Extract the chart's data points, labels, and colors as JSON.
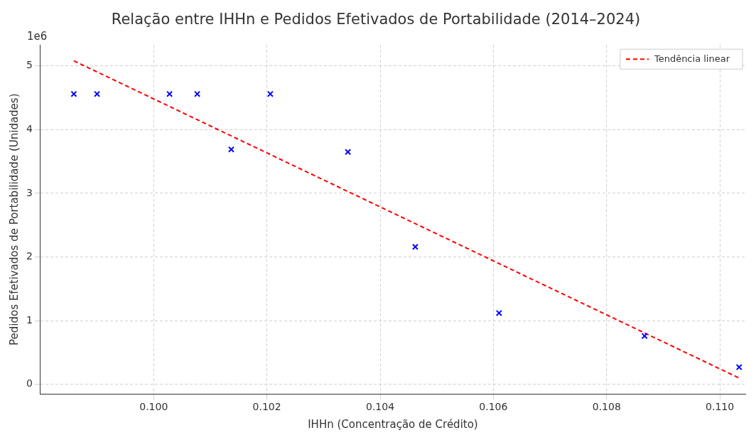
{
  "chart_data": {
    "type": "scatter",
    "title": "Relação entre IHHn e Pedidos Efetivados de Portabilidade (2014–2024)",
    "xlabel": "IHHn (Concentração de Crédito)",
    "ylabel": "Pedidos Efetivados de Portabilidade (Unidades)",
    "annotations": [
      "1e6"
    ],
    "series": [
      {
        "color": "#0000ff",
        "marker": "cross",
        "x": [
          0.09859,
          0.099,
          0.10028,
          0.10077,
          0.10137,
          0.10206,
          0.10343,
          0.10462,
          0.1061,
          0.10867,
          0.11034
        ],
        "values": [
          4.56,
          4.56,
          4.56,
          4.56,
          3.69,
          4.56,
          3.65,
          2.16,
          1.12,
          0.76,
          0.27
        ]
      },
      {
        "type": "line",
        "name": "Tendência linear",
        "color": "#ff0000",
        "line_style": "dashed",
        "marker": "none",
        "x": [
          0.09859,
          0.11034
        ],
        "values": [
          5.08,
          0.1
        ]
      }
    ],
    "xlim": [
      0.098,
      0.11045
    ],
    "xticks": [
      {
        "value": 0.1,
        "label": "0.100"
      },
      {
        "value": 0.102,
        "label": "0.102"
      },
      {
        "value": 0.104,
        "label": "0.104"
      },
      {
        "value": 0.106,
        "label": "0.106"
      },
      {
        "value": 0.108,
        "label": "0.108"
      },
      {
        "value": 0.11,
        "label": "0.110"
      }
    ],
    "ylim": [
      -0.15,
      5.33
    ],
    "yticks": [
      0,
      1,
      2,
      3,
      4,
      5
    ],
    "grid": true,
    "legend": "top right"
  }
}
